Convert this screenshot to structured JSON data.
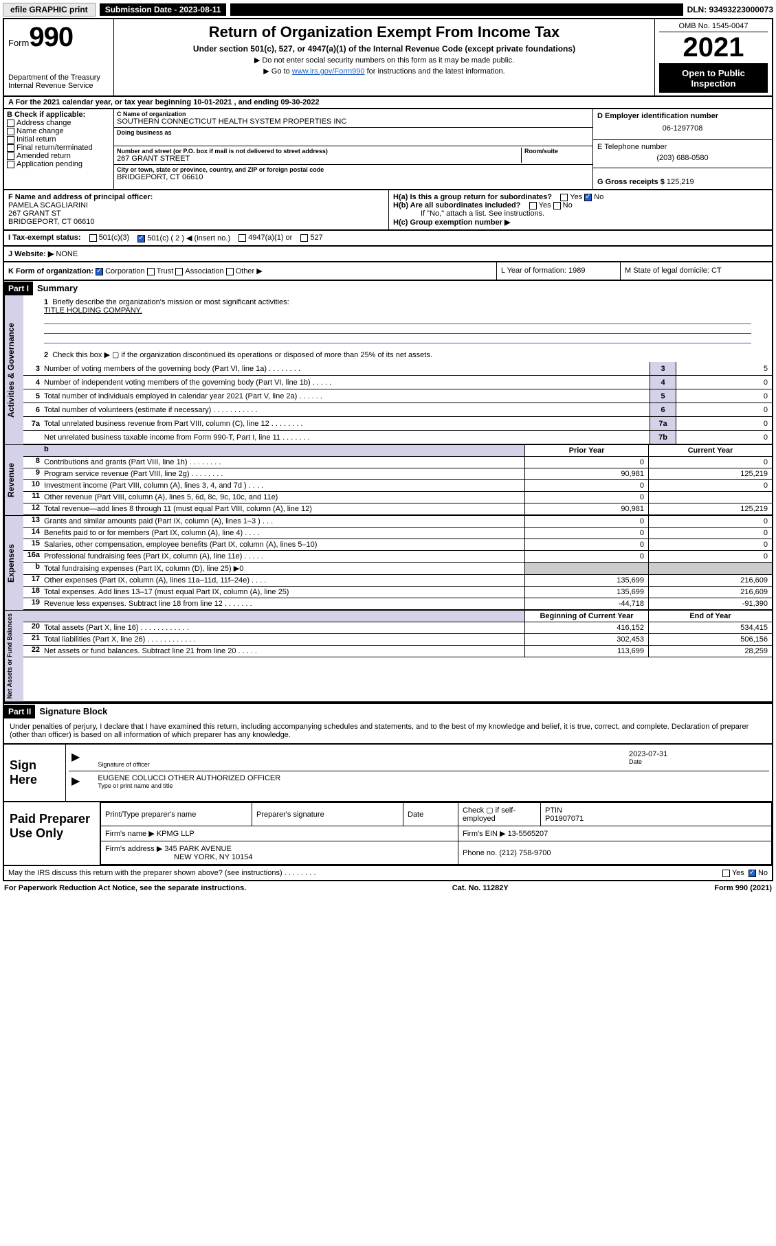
{
  "topbar": {
    "efile": "efile GRAPHIC print",
    "subdate_label": "Submission Date - 2023-08-11",
    "dln": "DLN: 93493223000073"
  },
  "header": {
    "form_prefix": "Form",
    "form_number": "990",
    "dept": "Department of the Treasury",
    "irs": "Internal Revenue Service",
    "title": "Return of Organization Exempt From Income Tax",
    "subtitle": "Under section 501(c), 527, or 4947(a)(1) of the Internal Revenue Code (except private foundations)",
    "line1": "▶ Do not enter social security numbers on this form as it may be made public.",
    "line2_pre": "▶ Go to ",
    "line2_link": "www.irs.gov/Form990",
    "line2_post": " for instructions and the latest information.",
    "omb": "OMB No. 1545-0047",
    "year": "2021",
    "open": "Open to Public Inspection"
  },
  "line_a": "A For the 2021 calendar year, or tax year beginning 10-01-2021   , and ending 09-30-2022",
  "col_b": {
    "hdr": "B Check if applicable:",
    "items": [
      "Address change",
      "Name change",
      "Initial return",
      "Final return/terminated",
      "Amended return",
      "Application pending"
    ]
  },
  "col_c": {
    "name_lbl": "C Name of organization",
    "name": "SOUTHERN CONNECTICUT HEALTH SYSTEM PROPERTIES INC",
    "dba_lbl": "Doing business as",
    "addr_lbl": "Number and street (or P.O. box if mail is not delivered to street address)",
    "room_lbl": "Room/suite",
    "addr": "267 GRANT STREET",
    "city_lbl": "City or town, state or province, country, and ZIP or foreign postal code",
    "city": "BRIDGEPORT, CT  06610"
  },
  "col_d": {
    "ein_lbl": "D Employer identification number",
    "ein": "06-1297708",
    "tel_lbl": "E Telephone number",
    "tel": "(203) 688-0580",
    "gross_lbl": "G Gross receipts $ ",
    "gross": "125,219"
  },
  "line_f": {
    "f_lbl": "F Name and address of principal officer:",
    "f_name": "PAMELA SCAGLIARINI",
    "f_addr1": "267 GRANT ST",
    "f_addr2": "BRIDGEPORT, CT  06610",
    "ha": "H(a)  Is this a group return for subordinates?",
    "hb": "H(b)  Are all subordinates included?",
    "hb_note": "If \"No,\" attach a list. See instructions.",
    "hc": "H(c)  Group exemption number ▶",
    "yes": "Yes",
    "no": "No"
  },
  "line_i": {
    "lbl": "I   Tax-exempt status:",
    "c3": "501(c)(3)",
    "c": "501(c) ( 2 ) ◀ (insert no.)",
    "a1": "4947(a)(1) or",
    "527": "527"
  },
  "line_j": {
    "lbl": "J   Website: ▶ ",
    "val": "NONE"
  },
  "line_k": {
    "lbl": "K Form of organization:",
    "opts": [
      "Corporation",
      "Trust",
      "Association",
      "Other ▶"
    ],
    "l": "L Year of formation: 1989",
    "m": "M State of legal domicile: CT"
  },
  "part1": {
    "hd": "Part I",
    "title": "Summary",
    "q1": "Briefly describe the organization's mission or most significant activities:",
    "mission": "TITLE HOLDING COMPANY.",
    "q2": "Check this box ▶ ▢  if the organization discontinued its operations or disposed of more than 25% of its net assets.",
    "vlabels": [
      "Activities & Governance",
      "Revenue",
      "Expenses",
      "Net Assets or Fund Balances"
    ],
    "gov": [
      {
        "n": "3",
        "t": "Number of voting members of the governing body (Part VI, line 1a)  .     .     .     .     .     .     .     .",
        "b": "3",
        "v": "5"
      },
      {
        "n": "4",
        "t": "Number of independent voting members of the governing body (Part VI, line 1b)  .     .     .     .     .",
        "b": "4",
        "v": "0"
      },
      {
        "n": "5",
        "t": "Total number of individuals employed in calendar year 2021 (Part V, line 2a)  .     .     .     .     .     .",
        "b": "5",
        "v": "0"
      },
      {
        "n": "6",
        "t": "Total number of volunteers (estimate if necessary)  .     .     .     .     .     .     .     .     .     .     .",
        "b": "6",
        "v": "0"
      },
      {
        "n": "7a",
        "t": "Total unrelated business revenue from Part VIII, column (C), line 12  .     .     .     .     .     .     .     .",
        "b": "7a",
        "v": "0"
      },
      {
        "n": "",
        "t": "Net unrelated business taxable income from Form 990-T, Part I, line 11  .     .     .     .     .     .     .",
        "b": "7b",
        "v": "0"
      }
    ],
    "col_py": "Prior Year",
    "col_cy": "Current Year",
    "rev": [
      {
        "n": "8",
        "t": "Contributions and grants (Part VIII, line 1h)  .     .     .     .     .     .     .     .",
        "p": "0",
        "c": "0"
      },
      {
        "n": "9",
        "t": "Program service revenue (Part VIII, line 2g)  .     .     .     .     .     .     .     .",
        "p": "90,981",
        "c": "125,219"
      },
      {
        "n": "10",
        "t": "Investment income (Part VIII, column (A), lines 3, 4, and 7d )  .     .     .     .",
        "p": "0",
        "c": "0"
      },
      {
        "n": "11",
        "t": "Other revenue (Part VIII, column (A), lines 5, 6d, 8c, 9c, 10c, and 11e)",
        "p": "0",
        "c": ""
      },
      {
        "n": "12",
        "t": "Total revenue—add lines 8 through 11 (must equal Part VIII, column (A), line 12)",
        "p": "90,981",
        "c": "125,219"
      }
    ],
    "exp": [
      {
        "n": "13",
        "t": "Grants and similar amounts paid (Part IX, column (A), lines 1–3 )  .     .     .",
        "p": "0",
        "c": "0"
      },
      {
        "n": "14",
        "t": "Benefits paid to or for members (Part IX, column (A), line 4)  .     .     .     .",
        "p": "0",
        "c": "0"
      },
      {
        "n": "15",
        "t": "Salaries, other compensation, employee benefits (Part IX, column (A), lines 5–10)",
        "p": "0",
        "c": "0"
      },
      {
        "n": "16a",
        "t": "Professional fundraising fees (Part IX, column (A), line 11e)  .     .     .     .     .",
        "p": "0",
        "c": "0"
      },
      {
        "n": "b",
        "t": "Total fundraising expenses (Part IX, column (D), line 25) ▶0",
        "p": "",
        "c": "",
        "gray": true
      },
      {
        "n": "17",
        "t": "Other expenses (Part IX, column (A), lines 11a–11d, 11f–24e)  .     .     .     .",
        "p": "135,699",
        "c": "216,609"
      },
      {
        "n": "18",
        "t": "Total expenses. Add lines 13–17 (must equal Part IX, column (A), line 25)",
        "p": "135,699",
        "c": "216,609"
      },
      {
        "n": "19",
        "t": "Revenue less expenses. Subtract line 18 from line 12  .     .     .     .     .     .     .",
        "p": "-44,718",
        "c": "-91,390"
      }
    ],
    "col_boy": "Beginning of Current Year",
    "col_eoy": "End of Year",
    "net": [
      {
        "n": "20",
        "t": "Total assets (Part X, line 16)  .     .     .     .     .     .     .     .     .     .     .     .",
        "p": "416,152",
        "c": "534,415"
      },
      {
        "n": "21",
        "t": "Total liabilities (Part X, line 26)  .     .     .     .     .     .     .     .     .     .     .     .",
        "p": "302,453",
        "c": "506,156"
      },
      {
        "n": "22",
        "t": "Net assets or fund balances. Subtract line 21 from line 20  .     .     .     .     .",
        "p": "113,699",
        "c": "28,259"
      }
    ]
  },
  "part2": {
    "hd": "Part II",
    "title": "Signature Block",
    "decl": "Under penalties of perjury, I declare that I have examined this return, including accompanying schedules and statements, and to the best of my knowledge and belief, it is true, correct, and complete. Declaration of preparer (other than officer) is based on all information of which preparer has any knowledge."
  },
  "sign": {
    "lbl": "Sign Here",
    "sig_lbl": "Signature of officer",
    "date_lbl": "Date",
    "date": "2023-07-31",
    "name": "EUGENE COLUCCI  OTHER AUTHORIZED OFFICER",
    "name_lbl": "Type or print name and title"
  },
  "paid": {
    "lbl": "Paid Preparer Use Only",
    "h1": "Print/Type preparer's name",
    "h2": "Preparer's signature",
    "h3": "Date",
    "h4_pre": "Check ▢ if self-employed",
    "h5": "PTIN",
    "ptin": "P01907071",
    "firm_lbl": "Firm's name   ▶",
    "firm": "KPMG LLP",
    "ein_lbl": "Firm's EIN ▶",
    "ein": "13-5565207",
    "addr_lbl": "Firm's address ▶",
    "addr1": "345 PARK AVENUE",
    "addr2": "NEW YORK, NY  10154",
    "ph_lbl": "Phone no.",
    "ph": "(212) 758-9700"
  },
  "may": {
    "q": "May the IRS discuss this return with the preparer shown above? (see instructions)  .     .     .     .     .     .     .     .",
    "yes": "Yes",
    "no": "No"
  },
  "footer": {
    "l": "For Paperwork Reduction Act Notice, see the separate instructions.",
    "c": "Cat. No. 11282Y",
    "r": "Form 990 (2021)"
  }
}
